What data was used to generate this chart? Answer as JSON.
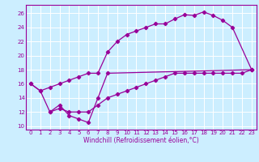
{
  "xlabel": "Windchill (Refroidissement éolien,°C)",
  "bg_color": "#cceeff",
  "grid_color": "#ffffff",
  "line_color": "#990099",
  "x_ticks": [
    0,
    1,
    2,
    3,
    4,
    5,
    6,
    7,
    8,
    9,
    10,
    11,
    12,
    13,
    14,
    15,
    16,
    17,
    18,
    19,
    20,
    21,
    22,
    23
  ],
  "y_ticks": [
    10,
    12,
    14,
    16,
    18,
    20,
    22,
    24,
    26
  ],
  "xlim": [
    -0.5,
    23.5
  ],
  "ylim": [
    9.5,
    27.2
  ],
  "series1_x": [
    0,
    1,
    2,
    3,
    4,
    5,
    6,
    7,
    8,
    9,
    10,
    11,
    12,
    13,
    14,
    15,
    16,
    17,
    18,
    19,
    20,
    21,
    23
  ],
  "series1_y": [
    16.0,
    15.0,
    15.5,
    16.0,
    16.5,
    17.0,
    17.5,
    17.5,
    20.5,
    22.0,
    23.0,
    23.5,
    24.0,
    24.5,
    24.5,
    25.2,
    25.8,
    25.7,
    26.2,
    25.7,
    25.0,
    24.0,
    18.0
  ],
  "series2_x": [
    0,
    1,
    2,
    3,
    4,
    5,
    6,
    7,
    8,
    23
  ],
  "series2_y": [
    16.0,
    15.0,
    12.0,
    13.0,
    11.5,
    11.0,
    10.5,
    14.0,
    17.5,
    18.0
  ],
  "series3_x": [
    2,
    3,
    4,
    5,
    6,
    7,
    8,
    9,
    10,
    11,
    12,
    13,
    14,
    15,
    16,
    17,
    18,
    19,
    20,
    21,
    22,
    23
  ],
  "series3_y": [
    12.0,
    12.5,
    12.0,
    12.0,
    12.0,
    13.0,
    14.0,
    14.5,
    15.0,
    15.5,
    16.0,
    16.5,
    17.0,
    17.5,
    17.5,
    17.5,
    17.5,
    17.5,
    17.5,
    17.5,
    17.5,
    18.0
  ]
}
